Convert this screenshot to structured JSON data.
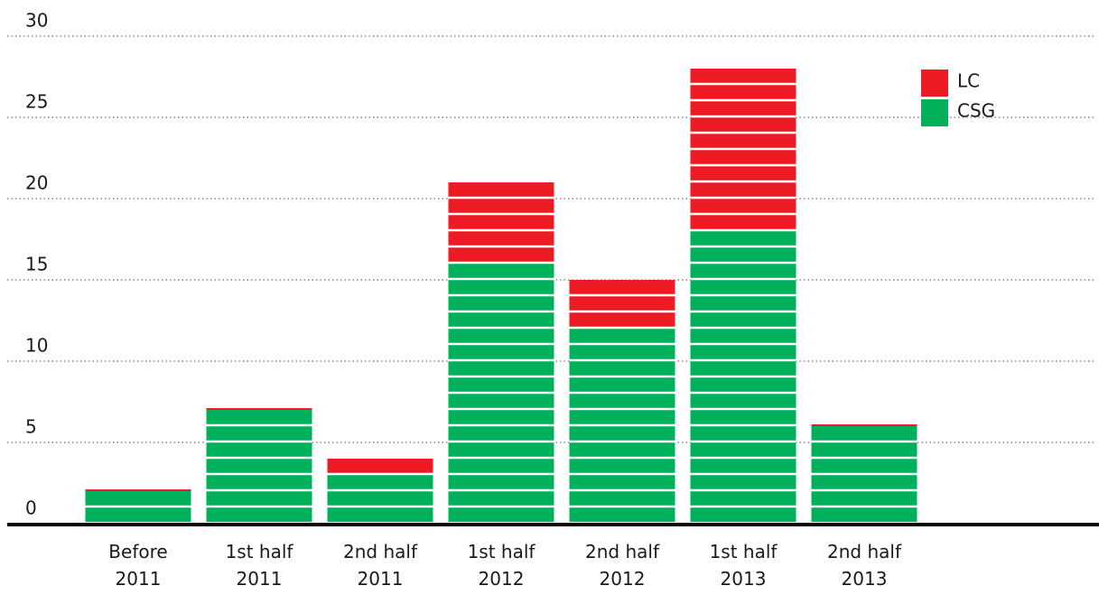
{
  "chart_data": {
    "type": "stacked_bar",
    "categories": [
      "Before\n2011",
      "1st half\n2011",
      "2nd half\n2011",
      "1st half\n2012",
      "2nd half\n2012",
      "1st half\n2013",
      "2nd half\n2013"
    ],
    "series": [
      {
        "name": "CSG",
        "color": "#00b05a",
        "values": [
          2,
          7,
          3,
          16,
          12,
          18,
          6
        ]
      },
      {
        "name": "LC",
        "color": "#ed1c24",
        "values": [
          0,
          0,
          1,
          5,
          3,
          10,
          0
        ]
      }
    ],
    "ylim": [
      0,
      30
    ],
    "yticks": [
      0,
      5,
      10,
      15,
      20,
      25,
      30
    ],
    "grid": true,
    "legend": "top-right"
  }
}
